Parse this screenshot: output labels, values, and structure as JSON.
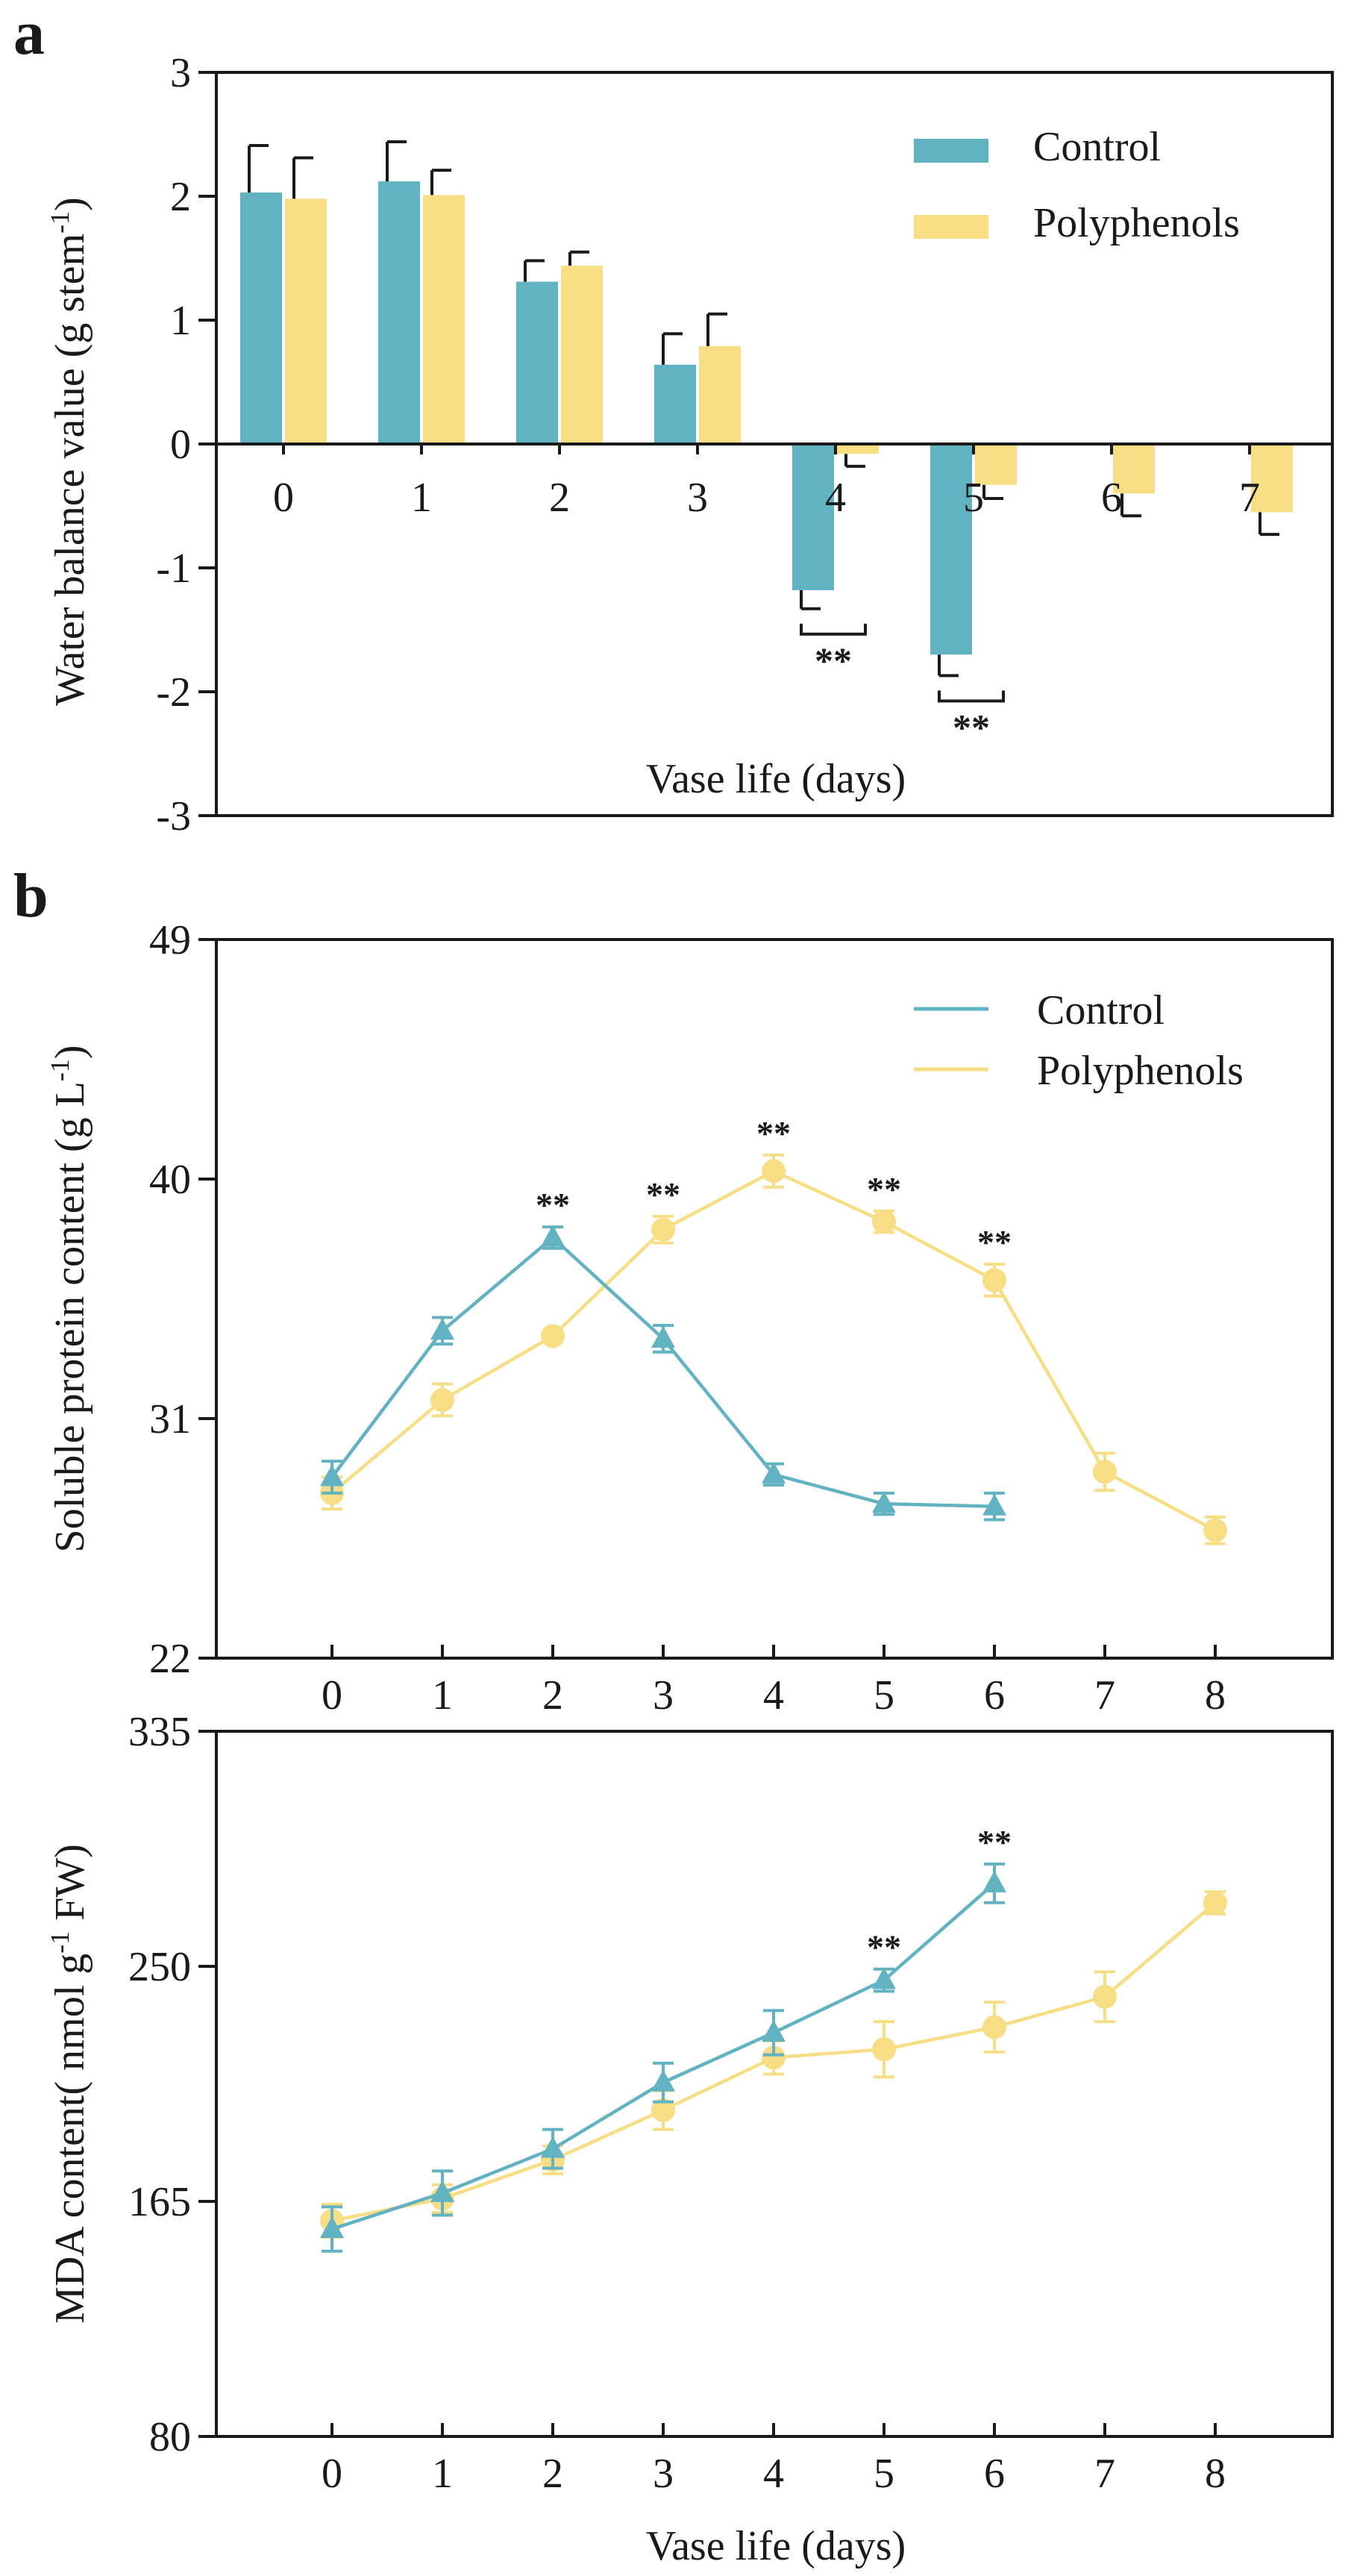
{
  "colors": {
    "control": "#62b3c2",
    "polyphenols": "#f7de84",
    "ink": "#1a1a1a"
  },
  "chart_data": [
    {
      "panel_label": "a",
      "type": "bar",
      "title": "",
      "xlabel": "Vase life (days)",
      "ylabel_main": "Water balance value (g stem",
      "ylabel_sup": "-1",
      "ylabel_end": ")",
      "ylim": [
        -3,
        3
      ],
      "yticks": [
        -3,
        -2,
        -1,
        0,
        1,
        2,
        3
      ],
      "categories": [
        "0",
        "1",
        "2",
        "3",
        "4",
        "5",
        "6",
        "7"
      ],
      "legend": "top-right",
      "series": [
        {
          "name": "Control",
          "values": [
            2.03,
            2.12,
            1.31,
            0.64,
            -1.18,
            -1.7,
            null,
            null
          ],
          "errors": [
            0.38,
            0.32,
            0.17,
            0.25,
            0.15,
            0.17,
            null,
            null
          ]
        },
        {
          "name": "Polyphenols",
          "values": [
            1.98,
            2.01,
            1.44,
            0.79,
            -0.08,
            -0.33,
            -0.4,
            -0.55
          ],
          "errors": [
            0.33,
            0.2,
            0.11,
            0.26,
            0.1,
            0.11,
            0.18,
            0.18
          ]
        }
      ],
      "significance": [
        {
          "category": "4",
          "label": "**"
        },
        {
          "category": "5",
          "label": "**"
        }
      ]
    },
    {
      "panel_label": "b",
      "type": "line",
      "title": "",
      "xlabel": "",
      "ylabel_main": "Soluble protein content (g L",
      "ylabel_sup": "-1",
      "ylabel_end": ")",
      "ylim": [
        22,
        49
      ],
      "yticks": [
        22,
        31,
        40,
        49
      ],
      "x": [
        0,
        1,
        2,
        3,
        4,
        5,
        6,
        7,
        8
      ],
      "legend": "top-right",
      "series": [
        {
          "name": "Control",
          "marker": "triangle",
          "values": [
            28.8,
            34.3,
            37.8,
            34.0,
            28.9,
            27.8,
            27.7,
            null,
            null
          ],
          "errors": [
            0.6,
            0.5,
            0.4,
            0.5,
            0.4,
            0.4,
            0.5,
            null,
            null
          ]
        },
        {
          "name": "Polyphenols",
          "marker": "circle",
          "values": [
            28.2,
            31.7,
            34.1,
            38.1,
            40.3,
            38.4,
            36.2,
            29.0,
            26.8
          ],
          "errors": [
            0.6,
            0.6,
            0.2,
            0.5,
            0.6,
            0.4,
            0.6,
            0.7,
            0.5
          ]
        }
      ],
      "annotations": [
        {
          "x": 2,
          "series": "Control",
          "label": "**"
        },
        {
          "x": 3,
          "series": "Polyphenols",
          "label": "**"
        },
        {
          "x": 4,
          "series": "Polyphenols",
          "label": "**"
        },
        {
          "x": 5,
          "series": "Polyphenols",
          "label": "**"
        },
        {
          "x": 6,
          "series": "Polyphenols",
          "label": "**"
        }
      ]
    },
    {
      "panel_label": "",
      "type": "line",
      "title": "",
      "xlabel": "Vase life (days)",
      "ylabel_main": "MDA content( nmol g",
      "ylabel_sup": "-1",
      "ylabel_end": " FW)",
      "ylim": [
        80,
        335
      ],
      "yticks": [
        80,
        165,
        250,
        335
      ],
      "x": [
        0,
        1,
        2,
        3,
        4,
        5,
        6,
        7,
        8
      ],
      "legend": "none",
      "series": [
        {
          "name": "Control",
          "marker": "triangle",
          "values": [
            155,
            168,
            184,
            208,
            226,
            245,
            280,
            null,
            null
          ],
          "errors": [
            8,
            8,
            7,
            7,
            8,
            4,
            7,
            null,
            null
          ]
        },
        {
          "name": "Polyphenols",
          "marker": "circle",
          "values": [
            158,
            166,
            180,
            198,
            217,
            220,
            228,
            239,
            273
          ],
          "errors": [
            6,
            5,
            5,
            7,
            6,
            10,
            9,
            9,
            4
          ]
        }
      ],
      "annotations": [
        {
          "x": 5,
          "series": "Control",
          "label": "**"
        },
        {
          "x": 6,
          "series": "Control",
          "label": "**"
        }
      ]
    }
  ]
}
